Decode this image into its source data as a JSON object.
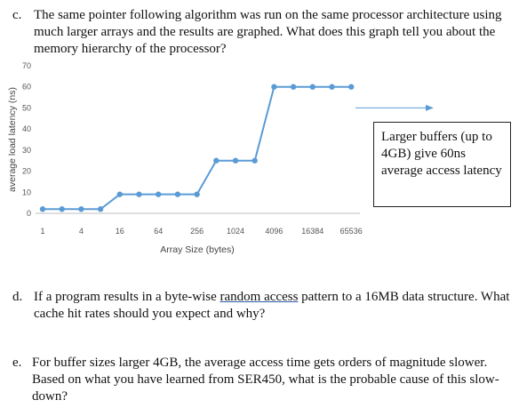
{
  "questions": {
    "c": {
      "marker": "c.",
      "text": "The same pointer following algorithm was run on the same processor architecture using much larger arrays and the results are graphed.  What does this graph tell you about the memory hierarchy of the processor?"
    },
    "d": {
      "marker": "d.",
      "pre": "If a program results in a byte-wise ",
      "underlined": "random access",
      "post": " pattern to a 16MB data structure.  What cache hit rates should you expect and why?"
    },
    "e": {
      "marker": "e.",
      "text": "For buffer sizes larger 4GB, the average access time gets orders of magnitude slower.  Based on what you have learned from SER450, what is the probable cause of this slow-down?"
    }
  },
  "callout": {
    "text": "Larger buffers (up to 4GB) give 60ns average access latency"
  },
  "chart_data": {
    "type": "line",
    "xlabel": "Array Size (bytes)",
    "ylabel": "average load latency (ns)",
    "ylim": [
      0,
      70
    ],
    "yticks": [
      0,
      10,
      20,
      30,
      40,
      50,
      60,
      70
    ],
    "xscale": "log2",
    "xticks": [
      "1",
      "4",
      "16",
      "64",
      "256",
      "1024",
      "4096",
      "16384",
      "65536"
    ],
    "grid": false,
    "series": [
      {
        "x": [
          1,
          2,
          4,
          8,
          16,
          32,
          64,
          128,
          256,
          512,
          1024,
          2048,
          4096,
          8192,
          16384,
          32768,
          65536
        ],
        "values": [
          2,
          2,
          2,
          2,
          9,
          9,
          9,
          9,
          9,
          25,
          25,
          25,
          60,
          60,
          60,
          60,
          60
        ]
      }
    ],
    "colors": {
      "line": "#5b9bd5",
      "axis": "#bfbfbf"
    }
  }
}
